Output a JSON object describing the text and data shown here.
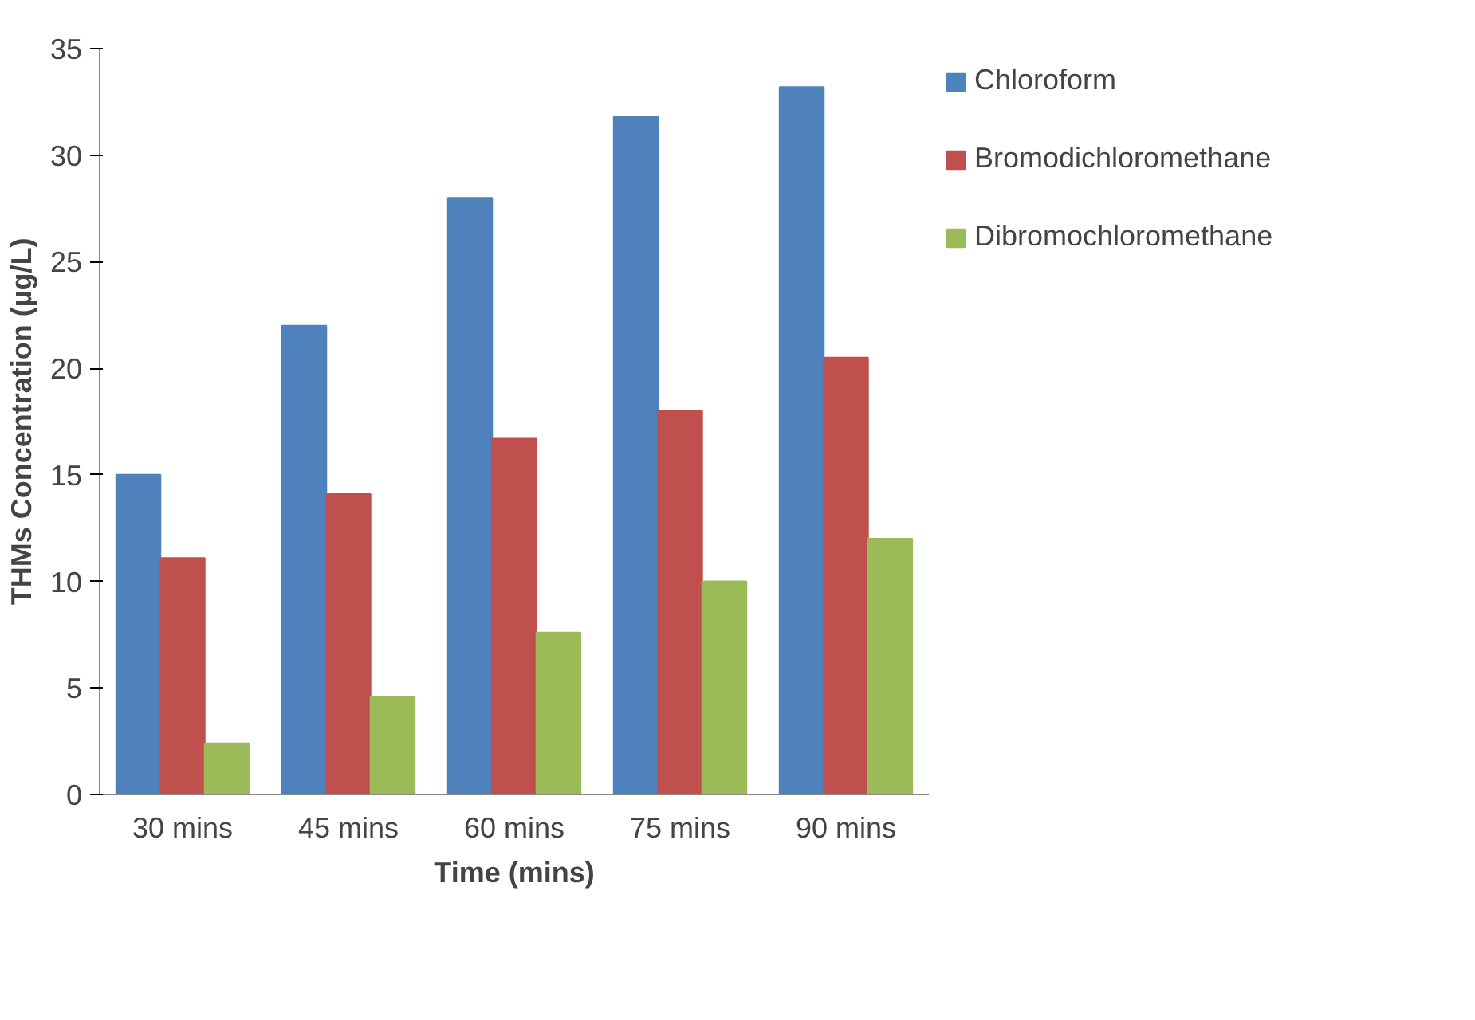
{
  "chart_data": {
    "type": "bar",
    "xlabel": "Time (mins)",
    "ylabel": "THMs Concentration (µg/L)",
    "categories": [
      "30 mins",
      "45 mins",
      "60 mins",
      "75 mins",
      "90 mins"
    ],
    "series": [
      {
        "name": "Chloroform",
        "color": "#4f81bd",
        "values": [
          15.0,
          22.0,
          28.0,
          31.8,
          33.2
        ]
      },
      {
        "name": "Bromodichloromethane",
        "color": "#c0504d",
        "values": [
          11.1,
          14.1,
          16.7,
          18.0,
          20.5
        ]
      },
      {
        "name": "Dibromochloromethane",
        "color": "#9bbb59",
        "values": [
          2.4,
          4.6,
          7.6,
          10.0,
          12.0
        ]
      }
    ],
    "ylim": [
      0,
      35
    ],
    "yticks": [
      0,
      5,
      10,
      15,
      20,
      25,
      30,
      35
    ],
    "grid": false,
    "legend": "right"
  }
}
